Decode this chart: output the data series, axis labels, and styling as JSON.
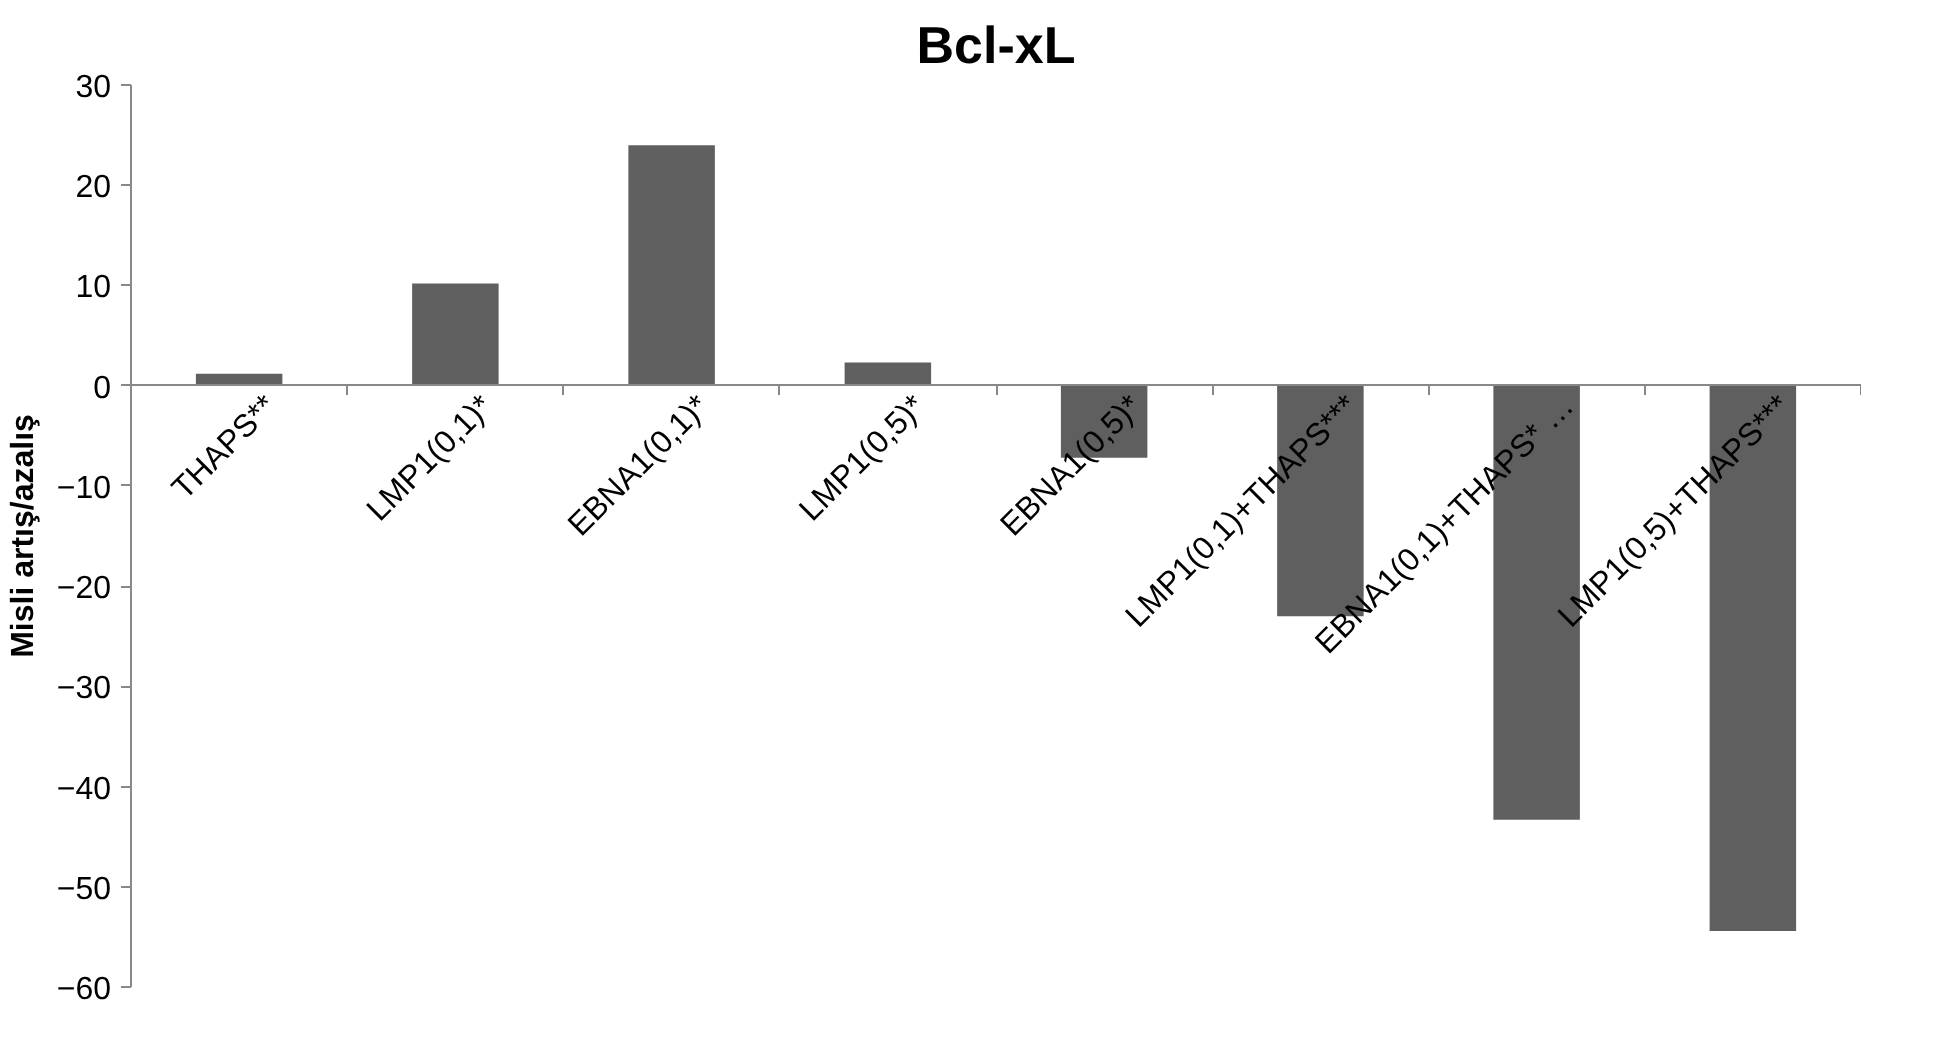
{
  "chart_data": {
    "type": "bar",
    "title": "Bcl-xL",
    "ylabel": "Misli artış/azalış",
    "categories": [
      "THAPS**",
      "LMP1(0,1)*",
      "EBNA1(0,1)*",
      "LMP1(0,5)*",
      "EBNA1(0,5)*",
      "LMP1(0,1)+THAPS***",
      "EBNA1(0,1)+THAPS* …",
      "LMP1(0,5)+THAPS***"
    ],
    "values": [
      1.2,
      10.2,
      24,
      2.3,
      -7.2,
      -23,
      -43.3,
      -54.4
    ],
    "color": "#5f5f5f",
    "ylim": [
      -60,
      30
    ],
    "yticks": [
      -60,
      -50,
      -40,
      -30,
      -20,
      -10,
      0,
      10,
      20,
      30
    ],
    "grid": false
  }
}
